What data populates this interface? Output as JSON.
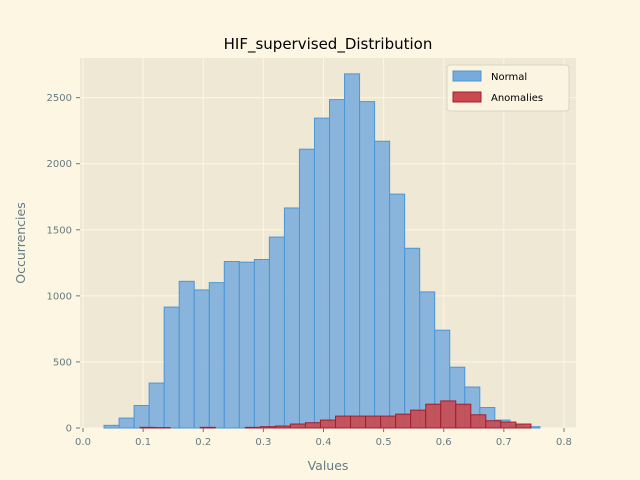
{
  "chart_data": {
    "type": "bar",
    "title": "HIF_supervised_Distribution",
    "xlabel": "Values",
    "ylabel": "Occurrencies",
    "xlim": [
      -0.005,
      0.82
    ],
    "ylim": [
      0,
      2800
    ],
    "xticks": [
      "0.0",
      "0.1",
      "0.2",
      "0.3",
      "0.4",
      "0.5",
      "0.6",
      "0.7",
      "0.8"
    ],
    "yticks": [
      "0",
      "500",
      "1000",
      "1500",
      "2000",
      "2500"
    ],
    "grid": true,
    "legend_position": "top-right",
    "bin_width": 0.025,
    "series": [
      {
        "name": "Normal",
        "color": "#77aadd",
        "edge_color": "#4c97d6",
        "bin_starts": [
          0.035,
          0.06,
          0.085,
          0.11,
          0.135,
          0.16,
          0.185,
          0.21,
          0.235,
          0.26,
          0.285,
          0.31,
          0.335,
          0.36,
          0.385,
          0.41,
          0.435,
          0.46,
          0.485,
          0.51,
          0.535,
          0.56,
          0.585,
          0.61,
          0.635,
          0.66,
          0.685,
          0.71,
          0.735
        ],
        "values": [
          20,
          75,
          170,
          340,
          915,
          1110,
          1045,
          1100,
          1260,
          1255,
          1275,
          1445,
          1665,
          2110,
          2345,
          2485,
          2680,
          2470,
          2170,
          1770,
          1360,
          1030,
          740,
          460,
          310,
          155,
          60,
          20,
          10
        ]
      },
      {
        "name": "Anomalies",
        "color": "#c9494f",
        "edge_color": "#a02030",
        "bin_starts": [
          0.095,
          0.12,
          0.195,
          0.27,
          0.295,
          0.32,
          0.345,
          0.37,
          0.395,
          0.42,
          0.445,
          0.47,
          0.495,
          0.52,
          0.545,
          0.57,
          0.595,
          0.62,
          0.645,
          0.67,
          0.695,
          0.72
        ],
        "values": [
          5,
          3,
          5,
          5,
          10,
          15,
          30,
          40,
          60,
          90,
          90,
          90,
          90,
          105,
          135,
          180,
          205,
          180,
          100,
          55,
          45,
          30
        ]
      }
    ]
  },
  "theme": {
    "page_bg": "#fdf6e3",
    "plot_bg": "#eee8d5",
    "grid_color": "#fdf6e3",
    "tick_color": "#657b83"
  }
}
